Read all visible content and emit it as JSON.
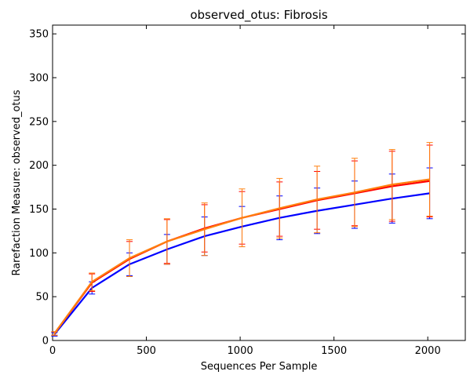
{
  "chart_data": {
    "type": "line",
    "title": "observed_otus: Fibrosis",
    "xlabel": "Sequences Per Sample",
    "ylabel": "Rarefaction Measure: observed_otus",
    "xlim": [
      0,
      2200
    ],
    "ylim": [
      0,
      360
    ],
    "xticks": [
      0,
      500,
      1000,
      1500,
      2000
    ],
    "yticks": [
      0,
      50,
      100,
      150,
      200,
      250,
      300,
      350
    ],
    "grid": false,
    "x": [
      10,
      210,
      410,
      610,
      810,
      1010,
      1210,
      1410,
      1610,
      1810,
      2010
    ],
    "series": [
      {
        "color": "#0000ff",
        "values": [
          7,
          60,
          87,
          104,
          119,
          130,
          140,
          148,
          155,
          162,
          168
        ],
        "err": [
          2,
          7,
          13,
          17,
          22,
          23,
          25,
          26,
          27,
          28,
          29
        ]
      },
      {
        "color": "#ff0000",
        "values": [
          8,
          66,
          93,
          113,
          128,
          140,
          150,
          160,
          168,
          176,
          182
        ],
        "err": [
          2,
          10,
          20,
          25,
          27,
          30,
          31,
          33,
          37,
          40,
          41
        ]
      },
      {
        "color": "#ff7f0e",
        "values": [
          8,
          67,
          94,
          113,
          127,
          140,
          151,
          161,
          169,
          178,
          184
        ],
        "err": [
          2,
          10,
          21,
          26,
          30,
          33,
          34,
          38,
          39,
          40,
          42
        ]
      }
    ]
  }
}
